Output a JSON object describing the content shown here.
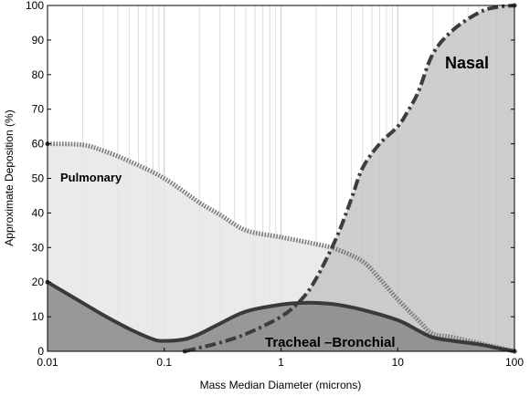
{
  "chart_data": {
    "type": "area",
    "xlabel": "Mass Median Diameter (microns)",
    "ylabel": "Approximate Deposition (%)",
    "xscale": "log",
    "xlim": [
      0.01,
      100
    ],
    "ylim": [
      0,
      100
    ],
    "x_ticks": [
      "0.01",
      "0.1",
      "1",
      "10",
      "100"
    ],
    "y_ticks": [
      "0",
      "10",
      "20",
      "30",
      "40",
      "50",
      "60",
      "70",
      "80",
      "90",
      "100"
    ],
    "grid": "vertical log minor lines",
    "series": [
      {
        "name": "Pulmonary",
        "color": "#e6e6e6",
        "line_style": "dotted-thick",
        "points": [
          [
            0.01,
            60
          ],
          [
            0.02,
            59.7
          ],
          [
            0.03,
            58
          ],
          [
            0.05,
            55
          ],
          [
            0.1,
            50
          ],
          [
            0.2,
            43
          ],
          [
            0.3,
            39.5
          ],
          [
            0.5,
            35
          ],
          [
            1,
            33
          ],
          [
            2,
            31
          ],
          [
            3,
            29.5
          ],
          [
            5,
            26
          ],
          [
            7,
            21
          ],
          [
            10,
            15
          ],
          [
            15,
            9
          ],
          [
            20,
            5
          ],
          [
            30,
            4
          ],
          [
            100,
            0
          ]
        ]
      },
      {
        "name": "Nasal",
        "color": "#c6c6c6",
        "line_style": "dash-dot",
        "points": [
          [
            0.15,
            0
          ],
          [
            0.2,
            1
          ],
          [
            0.3,
            2.5
          ],
          [
            0.5,
            5
          ],
          [
            1,
            10
          ],
          [
            1.5,
            15
          ],
          [
            2,
            21
          ],
          [
            3,
            33
          ],
          [
            4,
            44
          ],
          [
            5,
            53
          ],
          [
            7,
            60
          ],
          [
            10,
            65
          ],
          [
            12,
            69
          ],
          [
            15,
            75
          ],
          [
            20,
            86
          ],
          [
            30,
            93
          ],
          [
            50,
            98
          ],
          [
            70,
            99.5
          ],
          [
            100,
            100
          ]
        ]
      },
      {
        "name": "Tracheal –Bronchial",
        "color": "#8a8a8a",
        "line_style": "solid-thick",
        "points": [
          [
            0.01,
            20
          ],
          [
            0.02,
            14
          ],
          [
            0.03,
            10.5
          ],
          [
            0.05,
            6.5
          ],
          [
            0.08,
            3.5
          ],
          [
            0.1,
            3
          ],
          [
            0.15,
            3.5
          ],
          [
            0.2,
            5
          ],
          [
            0.3,
            8
          ],
          [
            0.5,
            11.5
          ],
          [
            1,
            13.5
          ],
          [
            1.5,
            14
          ],
          [
            2,
            14
          ],
          [
            3,
            13.5
          ],
          [
            5,
            12
          ],
          [
            10,
            9
          ],
          [
            15,
            6
          ],
          [
            20,
            4
          ],
          [
            30,
            3
          ],
          [
            50,
            2
          ],
          [
            70,
            1
          ],
          [
            100,
            0
          ]
        ]
      }
    ]
  }
}
